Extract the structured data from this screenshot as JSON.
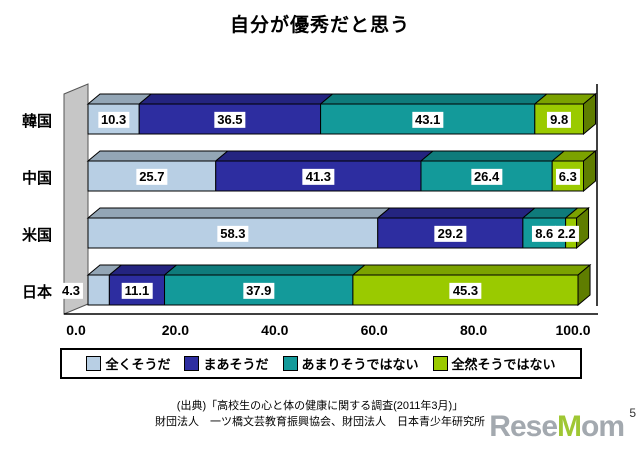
{
  "title": "自分が優秀だと思う",
  "chart_data": {
    "type": "bar",
    "stacked": true,
    "orientation": "horizontal",
    "style": "3d",
    "title": "自分が優秀だと思う",
    "categories": [
      "韓国",
      "中国",
      "米国",
      "日本"
    ],
    "series": [
      {
        "name": "全くそうだ",
        "color": "#b8cfe4",
        "values": [
          10.3,
          25.7,
          58.3,
          4.3
        ]
      },
      {
        "name": "まあそうだ",
        "color": "#2d2da0",
        "values": [
          36.5,
          41.3,
          29.2,
          11.1
        ]
      },
      {
        "name": "あまりそうではない",
        "color": "#139a9a",
        "values": [
          43.1,
          26.4,
          8.6,
          37.9
        ]
      },
      {
        "name": "全然そうではない",
        "color": "#9aca00",
        "values": [
          9.8,
          6.3,
          2.2,
          45.3
        ]
      }
    ],
    "xlim": [
      0,
      100
    ],
    "x_ticks": [
      "0.0",
      "20.0",
      "40.0",
      "60.0",
      "80.0",
      "100.0"
    ],
    "grid": false,
    "legend_position": "bottom",
    "wall_color": "#c6c6c6"
  },
  "footer": {
    "line1": "(出典)「高校生の心と体の健康に関する調査(2011年3月)」",
    "line2": "財団法人　一ツ橋文芸教育振興協会、財団法人　日本青少年研究所"
  },
  "watermark": {
    "part1": "Rese",
    "accent": "M",
    "part2": "om",
    "page": "5"
  }
}
